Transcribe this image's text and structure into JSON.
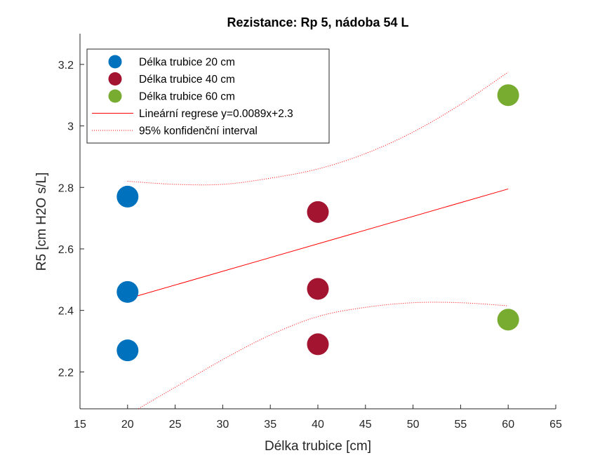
{
  "chart_data": {
    "type": "scatter",
    "title": "Rezistance: Rp 5, nádoba 54 L",
    "xlabel": "Délka trubice [cm]",
    "ylabel": "R5 [cm H2O s/L]",
    "xlim": [
      15,
      65
    ],
    "ylim": [
      2.08,
      3.3
    ],
    "xticks": [
      15,
      20,
      25,
      30,
      35,
      40,
      45,
      50,
      55,
      60,
      65
    ],
    "yticks": [
      2.2,
      2.4,
      2.6,
      2.8,
      3.0,
      3.2
    ],
    "xtick_labels": [
      "15",
      "20",
      "25",
      "30",
      "35",
      "40",
      "45",
      "50",
      "55",
      "60",
      "65"
    ],
    "ytick_labels": [
      "2.2",
      "2.4",
      "2.6",
      "2.8",
      "3",
      "3.2"
    ],
    "grid": false,
    "legend_position": "top-left",
    "series": [
      {
        "name": "Délka trubice 20 cm",
        "type": "scatter",
        "color": "#0072BD",
        "points": [
          [
            20,
            2.77
          ],
          [
            20,
            2.46
          ],
          [
            20,
            2.27
          ]
        ]
      },
      {
        "name": "Délka trubice 40 cm",
        "type": "scatter",
        "color": "#A2142F",
        "points": [
          [
            40,
            2.72
          ],
          [
            40,
            2.47
          ],
          [
            40,
            2.29
          ]
        ]
      },
      {
        "name": "Délka trubice 60 cm",
        "type": "scatter",
        "color": "#77AC30",
        "points": [
          [
            60,
            3.1
          ],
          [
            60,
            2.37
          ]
        ]
      },
      {
        "name": "Lineární regrese y=0.0089x+2.3",
        "type": "line",
        "color": "#FF0000",
        "style": "solid",
        "points": [
          [
            20,
            2.438
          ],
          [
            60,
            2.795
          ]
        ]
      },
      {
        "name": "95% konfidenční interval",
        "type": "line",
        "color": "#FF0000",
        "style": "dotted",
        "upper": [
          [
            20,
            2.82
          ],
          [
            25,
            2.81
          ],
          [
            30,
            2.81
          ],
          [
            35,
            2.83
          ],
          [
            40,
            2.86
          ],
          [
            45,
            2.91
          ],
          [
            50,
            2.98
          ],
          [
            55,
            3.07
          ],
          [
            60,
            3.175
          ]
        ],
        "lower": [
          [
            20,
            2.06
          ],
          [
            25,
            2.15
          ],
          [
            30,
            2.24
          ],
          [
            35,
            2.32
          ],
          [
            40,
            2.38
          ],
          [
            45,
            2.41
          ],
          [
            50,
            2.425
          ],
          [
            55,
            2.425
          ],
          [
            60,
            2.415
          ]
        ]
      }
    ]
  }
}
